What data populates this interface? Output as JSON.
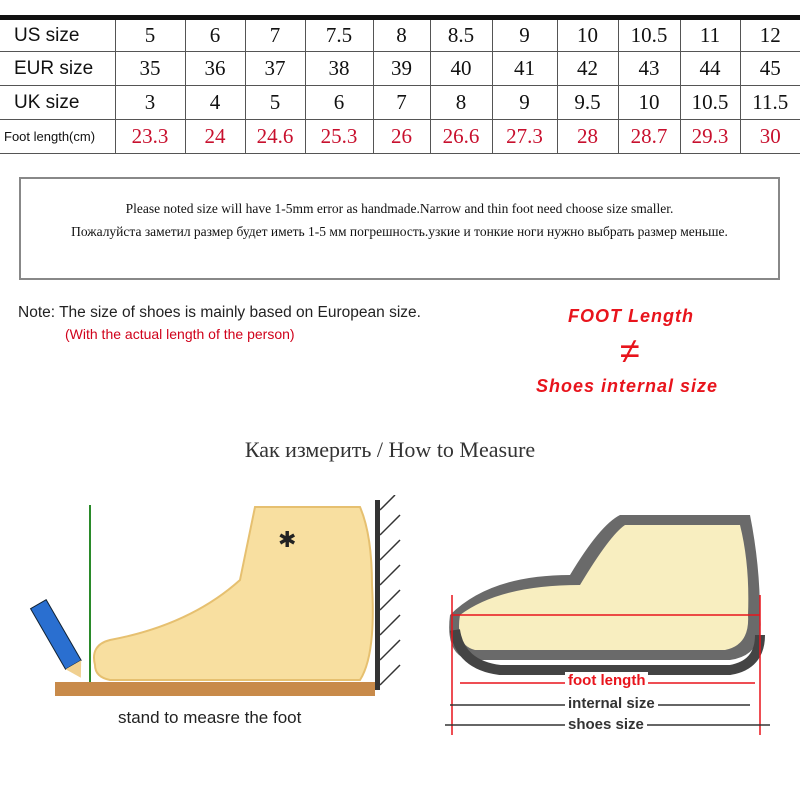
{
  "table": {
    "rows": [
      {
        "label": "US size",
        "values": [
          "5",
          "6",
          "7",
          "7.5",
          "8",
          "8.5",
          "9",
          "10",
          "10.5",
          "11",
          "12"
        ]
      },
      {
        "label": "EUR size",
        "values": [
          "35",
          "36",
          "37",
          "38",
          "39",
          "40",
          "41",
          "42",
          "43",
          "44",
          "45"
        ]
      },
      {
        "label": "UK size",
        "values": [
          "3",
          "4",
          "5",
          "6",
          "7",
          "8",
          "9",
          "9.5",
          "10",
          "10.5",
          "11.5"
        ]
      },
      {
        "label": "Foot length(cm)",
        "values": [
          "23.3",
          "24",
          "24.6",
          "25.3",
          "26",
          "26.6",
          "27.3",
          "28",
          "28.7",
          "29.3",
          "30"
        ]
      }
    ]
  },
  "notice": {
    "line1": "Please noted size will have 1-5mm error as handmade.Narrow and thin foot need choose size smaller.",
    "line2": "Пожалуйста заметил размер будет иметь 1-5 мм погрешность.узкие и тонкие ноги нужно выбрать размер меньше."
  },
  "note": {
    "text": "Note: The size of shoes is mainly based on European size.",
    "sub": "(With the actual length of the person)"
  },
  "callout": {
    "top": "FOOT Length",
    "symbol": "≠",
    "bottom": "Shoes internal size"
  },
  "howto": {
    "title": "Как измерить / How to Measure"
  },
  "left_figure": {
    "caption": "stand to measre the foot"
  },
  "right_figure": {
    "foot_length": "foot length",
    "internal_size": "internal size",
    "shoes_size": "shoes size"
  },
  "colors": {
    "accent_red": "#e8141c",
    "foot_skin": "#f8dfa0",
    "table_red": "#c8102e"
  }
}
